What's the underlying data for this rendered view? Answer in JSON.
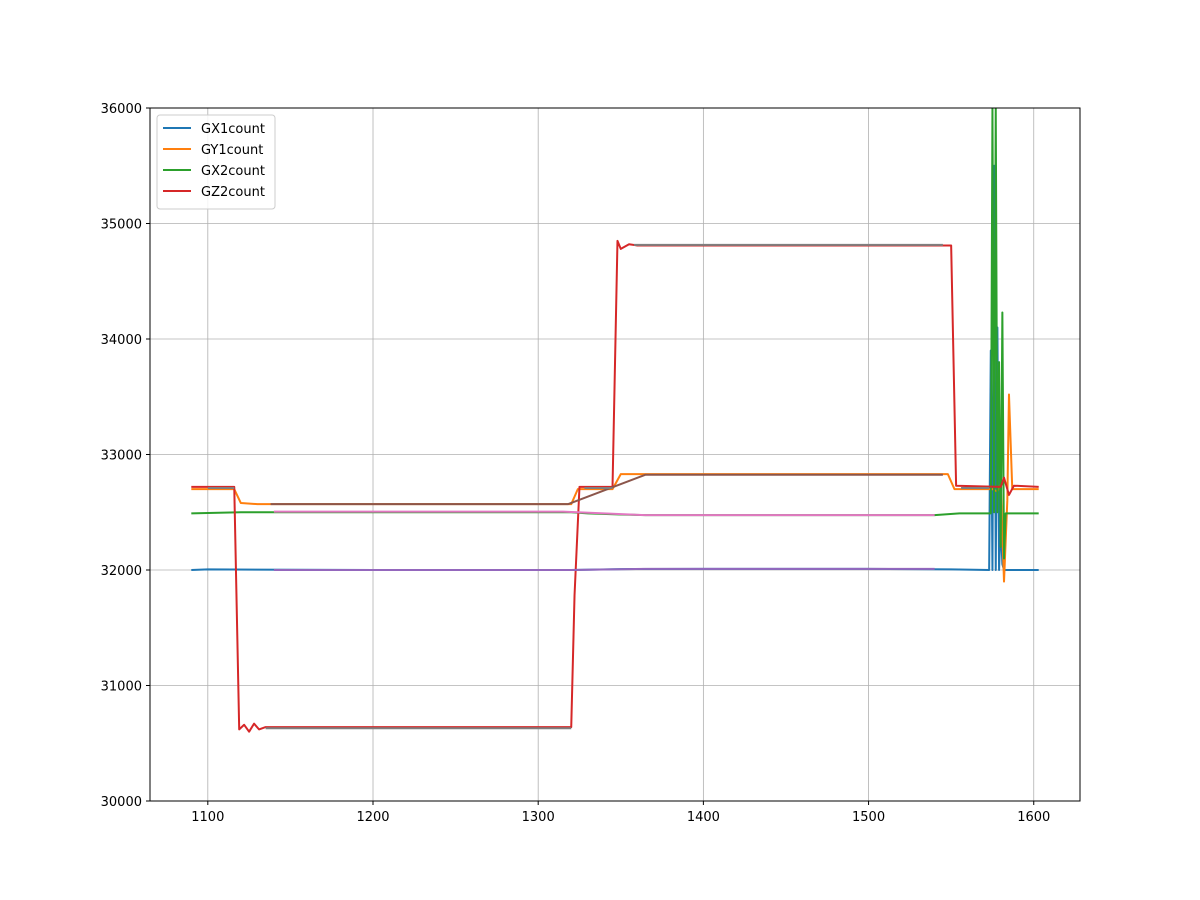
{
  "chart_data": {
    "type": "line",
    "title": "",
    "xlabel": "",
    "ylabel": "",
    "xlim": [
      1065,
      1628
    ],
    "ylim": [
      30000,
      36000
    ],
    "xticks": [
      1100,
      1200,
      1300,
      1400,
      1500,
      1600
    ],
    "yticks": [
      30000,
      31000,
      32000,
      33000,
      34000,
      35000,
      36000
    ],
    "grid": true,
    "legend_position": "top-left",
    "legend": [
      "GX1count",
      "GY1count",
      "GX2count",
      "GZ2count"
    ],
    "series": [
      {
        "name": "GX1count",
        "color": "#1f77b4",
        "x": [
          1090,
          1100,
          1200,
          1300,
          1320,
          1350,
          1400,
          1500,
          1550,
          1573,
          1574,
          1575,
          1576,
          1577,
          1578,
          1579,
          1580,
          1581,
          1582,
          1585,
          1603
        ],
        "y": [
          32000,
          32005,
          32000,
          32000,
          32000,
          32008,
          32010,
          32010,
          32005,
          32000,
          33900,
          32000,
          35500,
          32000,
          34100,
          32000,
          32400,
          32050,
          32000,
          32000,
          32000
        ]
      },
      {
        "name": "GY1count",
        "color": "#ff7f0e",
        "x": [
          1090,
          1116,
          1120,
          1130,
          1320,
          1324,
          1345,
          1350,
          1548,
          1552,
          1575,
          1578,
          1580,
          1582,
          1584,
          1585,
          1587,
          1603
        ],
        "y": [
          32700,
          32700,
          32580,
          32570,
          32570,
          32700,
          32700,
          32830,
          32830,
          32700,
          32700,
          32680,
          32750,
          31900,
          32600,
          33520,
          32700,
          32700
        ]
      },
      {
        "name": "GX2count",
        "color": "#2ca02c",
        "x": [
          1090,
          1120,
          1130,
          1320,
          1330,
          1350,
          1365,
          1540,
          1555,
          1574,
          1575,
          1576,
          1577,
          1578,
          1579,
          1580,
          1581,
          1582,
          1583,
          1586,
          1603
        ],
        "y": [
          32490,
          32500,
          32500,
          32500,
          32490,
          32480,
          32475,
          32475,
          32490,
          32490,
          36000,
          32500,
          36000,
          32500,
          33800,
          32200,
          34230,
          32100,
          32490,
          32490,
          32490
        ]
      },
      {
        "name": "GZ2count",
        "color": "#d62728",
        "x": [
          1090,
          1116,
          1119,
          1122,
          1125,
          1128,
          1131,
          1135,
          1320,
          1322,
          1325,
          1345,
          1348,
          1350,
          1355,
          1360,
          1548,
          1550,
          1553,
          1580,
          1582,
          1585,
          1588,
          1603
        ],
        "y": [
          32720,
          32720,
          30620,
          30660,
          30600,
          30670,
          30620,
          30640,
          30640,
          31780,
          32720,
          32720,
          34850,
          34780,
          34820,
          34810,
          34810,
          34810,
          32730,
          32720,
          32800,
          32650,
          32730,
          32720
        ]
      },
      {
        "name": "",
        "color": "#9467bd",
        "x": [
          1140,
          1320,
          1365,
          1540
        ],
        "y": [
          32000,
          32000,
          32010,
          32010
        ]
      },
      {
        "name": "",
        "color": "#e377c2",
        "x": [
          1140,
          1315,
          1365,
          1540
        ],
        "y": [
          32505,
          32505,
          32475,
          32475
        ]
      },
      {
        "name": "",
        "color": "#8c564b",
        "x": [
          1138,
          1318,
          1365,
          1545
        ],
        "y": [
          32570,
          32570,
          32825,
          32825
        ]
      },
      {
        "name": "",
        "color": "#7f7f7f",
        "x": [
          1100,
          1116
        ],
        "y": [
          32710,
          32710
        ]
      },
      {
        "name": "",
        "color": "#7f7f7f",
        "x": [
          1135,
          1320
        ],
        "y": [
          30630,
          30630
        ]
      },
      {
        "name": "",
        "color": "#7f7f7f",
        "x": [
          1328,
          1345
        ],
        "y": [
          32710,
          32710
        ]
      },
      {
        "name": "",
        "color": "#7f7f7f",
        "x": [
          1358,
          1545
        ],
        "y": [
          34815,
          34815
        ]
      },
      {
        "name": "",
        "color": "#7f7f7f",
        "x": [
          1556,
          1573
        ],
        "y": [
          32710,
          32710
        ]
      }
    ]
  }
}
